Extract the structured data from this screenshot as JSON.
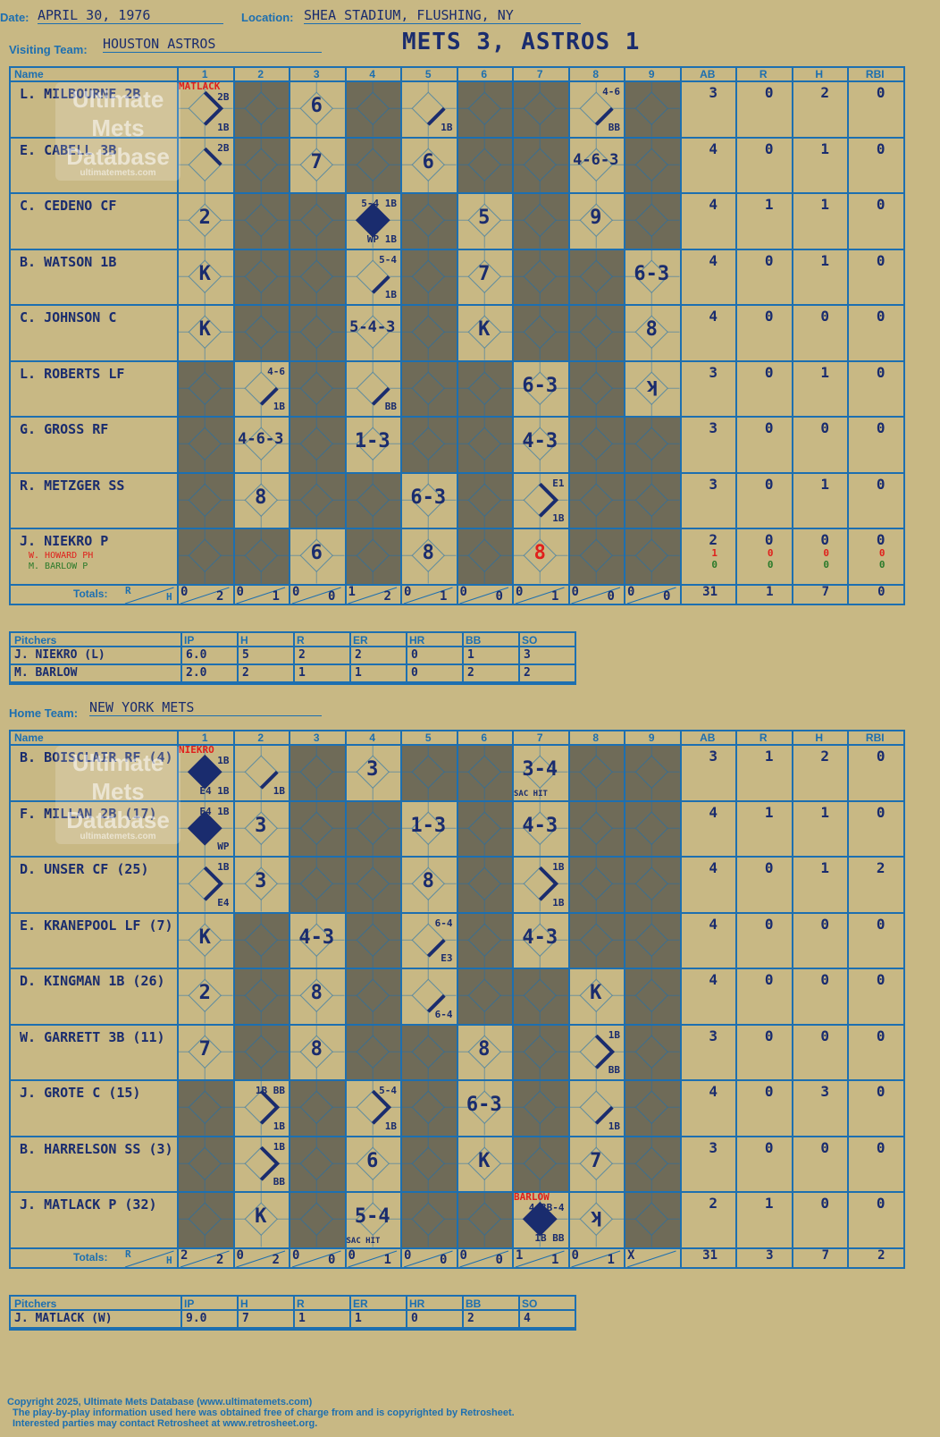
{
  "header": {
    "date_label": "Date:",
    "date": "APRIL 30, 1976",
    "location_label": "Location:",
    "location": "SHEA STADIUM, FLUSHING, NY",
    "title": "METS 3, ASTROS 1"
  },
  "colors": {
    "blue": "#1d6fb0",
    "ink": "#1a2c6e",
    "shade": "#6f6b58",
    "paper": "#c8b884",
    "red": "#e0201c",
    "green": "#2a7a2a"
  },
  "grid_headers": {
    "name": "Name",
    "innings": [
      "1",
      "2",
      "3",
      "4",
      "5",
      "6",
      "7",
      "8",
      "9"
    ],
    "stats": [
      "AB",
      "R",
      "H",
      "RBI"
    ],
    "totals": "Totals:",
    "r": "R",
    "h": "H"
  },
  "watermark": {
    "line1": "Ultimate",
    "line2": "Mets",
    "line3": "Database",
    "line4": "ultimatemets.com"
  },
  "visitors": {
    "label": "Visiting Team:",
    "team": "HOUSTON ASTROS",
    "batters": [
      {
        "name": "L. MILBOURNE 2B",
        "stats": [
          "3",
          "0",
          "2",
          "0"
        ],
        "cells": [
          {
            "s": 0,
            "play": "",
            "path": "1B-2B",
            "n": [
              "MATLACK",
              "2B",
              "1B"
            ]
          },
          {
            "s": 1
          },
          {
            "s": 0,
            "play": "6"
          },
          {
            "s": 1
          },
          {
            "s": 0,
            "play": "",
            "path": "1B",
            "n": [
              "",
              "",
              "1B"
            ]
          },
          {
            "s": 1
          },
          {
            "s": 1
          },
          {
            "s": 0,
            "play": "",
            "path": "BB",
            "n": [
              "",
              "4-6",
              "BB"
            ]
          },
          {
            "s": 1
          }
        ]
      },
      {
        "name": "E. CABELL 3B",
        "stats": [
          "4",
          "0",
          "1",
          "0"
        ],
        "cells": [
          {
            "s": 0,
            "play": "",
            "path": "2B",
            "n": [
              "",
              "2B",
              ""
            ]
          },
          {
            "s": 1
          },
          {
            "s": 0,
            "play": "7"
          },
          {
            "s": 1
          },
          {
            "s": 0,
            "play": "6"
          },
          {
            "s": 1
          },
          {
            "s": 1
          },
          {
            "s": 0,
            "play": "4-6-3"
          },
          {
            "s": 1
          }
        ]
      },
      {
        "name": "C. CEDENO CF",
        "stats": [
          "4",
          "1",
          "1",
          "0"
        ],
        "cells": [
          {
            "s": 0,
            "play": "2"
          },
          {
            "s": 1
          },
          {
            "s": 1
          },
          {
            "s": 0,
            "play": "",
            "path": "RUN",
            "n": [
              "",
              "5-4 1B",
              "WP  1B"
            ]
          },
          {
            "s": 1
          },
          {
            "s": 0,
            "play": "5"
          },
          {
            "s": 1
          },
          {
            "s": 0,
            "play": "9"
          },
          {
            "s": 1
          }
        ]
      },
      {
        "name": "B. WATSON 1B",
        "stats": [
          "4",
          "0",
          "1",
          "0"
        ],
        "cells": [
          {
            "s": 0,
            "play": "K"
          },
          {
            "s": 1
          },
          {
            "s": 1
          },
          {
            "s": 0,
            "play": "",
            "path": "1B",
            "n": [
              "",
              "5-4",
              "1B"
            ]
          },
          {
            "s": 1
          },
          {
            "s": 0,
            "play": "7"
          },
          {
            "s": 1
          },
          {
            "s": 1
          },
          {
            "s": 0,
            "play": "6-3"
          }
        ]
      },
      {
        "name": "C. JOHNSON C",
        "stats": [
          "4",
          "0",
          "0",
          "0"
        ],
        "cells": [
          {
            "s": 0,
            "play": "K"
          },
          {
            "s": 1
          },
          {
            "s": 1
          },
          {
            "s": 0,
            "play": "5-4-3"
          },
          {
            "s": 1
          },
          {
            "s": 0,
            "play": "K"
          },
          {
            "s": 1
          },
          {
            "s": 1
          },
          {
            "s": 0,
            "play": "8"
          }
        ]
      },
      {
        "name": "L. ROBERTS LF",
        "stats": [
          "3",
          "0",
          "1",
          "0"
        ],
        "cells": [
          {
            "s": 1
          },
          {
            "s": 0,
            "play": "",
            "path": "1B",
            "n": [
              "",
              "4-6",
              "1B"
            ]
          },
          {
            "s": 1
          },
          {
            "s": 0,
            "play": "",
            "path": "BB",
            "n": [
              "",
              "",
              "BB"
            ]
          },
          {
            "s": 1
          },
          {
            "s": 1
          },
          {
            "s": 0,
            "play": "6-3"
          },
          {
            "s": 1
          },
          {
            "s": 0,
            "play": "ʞ"
          }
        ]
      },
      {
        "name": "G. GROSS RF",
        "stats": [
          "3",
          "0",
          "0",
          "0"
        ],
        "cells": [
          {
            "s": 1
          },
          {
            "s": 0,
            "play": "4-6-3"
          },
          {
            "s": 1
          },
          {
            "s": 0,
            "play": "1-3"
          },
          {
            "s": 1
          },
          {
            "s": 1
          },
          {
            "s": 0,
            "play": "4-3"
          },
          {
            "s": 1
          },
          {
            "s": 1
          }
        ]
      },
      {
        "name": "R. METZGER SS",
        "stats": [
          "3",
          "0",
          "1",
          "0"
        ],
        "cells": [
          {
            "s": 1
          },
          {
            "s": 0,
            "play": "8"
          },
          {
            "s": 1
          },
          {
            "s": 1
          },
          {
            "s": 0,
            "play": "6-3"
          },
          {
            "s": 1
          },
          {
            "s": 0,
            "play": "",
            "path": "1B-2B",
            "n": [
              "",
              "E1",
              "1B"
            ]
          },
          {
            "s": 1
          },
          {
            "s": 1
          }
        ]
      },
      {
        "name": "J. NIEKRO P",
        "subs": [
          {
            "name": "W. HOWARD PH",
            "color": "#e0201c",
            "stats": [
              "1",
              "0",
              "0",
              "0"
            ]
          },
          {
            "name": "M. BARLOW P",
            "color": "#2a7a2a",
            "stats": [
              "0",
              "0",
              "0",
              "0"
            ]
          }
        ],
        "stats": [
          "2",
          "0",
          "0",
          "0"
        ],
        "cells": [
          {
            "s": 1
          },
          {
            "s": 1
          },
          {
            "s": 0,
            "play": "6"
          },
          {
            "s": 1
          },
          {
            "s": 0,
            "play": "8"
          },
          {
            "s": 1
          },
          {
            "s": 0,
            "play": "8",
            "red": true
          },
          {
            "s": 1
          },
          {
            "s": 1
          }
        ]
      }
    ],
    "totals": [
      [
        "0",
        "2"
      ],
      [
        "0",
        "1"
      ],
      [
        "0",
        "0"
      ],
      [
        "1",
        "2"
      ],
      [
        "0",
        "1"
      ],
      [
        "0",
        "0"
      ],
      [
        "0",
        "1"
      ],
      [
        "0",
        "0"
      ],
      [
        "0",
        "0"
      ]
    ],
    "stat_totals": [
      "31",
      "1",
      "7",
      "0"
    ],
    "pitchers_label": "Pitchers",
    "pitcher_headers": [
      "IP",
      "H",
      "R",
      "ER",
      "HR",
      "BB",
      "SO"
    ],
    "pitchers": [
      {
        "name": "J. NIEKRO (L)",
        "stats": [
          "6.0",
          "5",
          "2",
          "2",
          "0",
          "1",
          "3"
        ]
      },
      {
        "name": "M. BARLOW",
        "stats": [
          "2.0",
          "2",
          "1",
          "1",
          "0",
          "2",
          "2"
        ]
      }
    ]
  },
  "home": {
    "label": "Home Team:",
    "team": "NEW YORK METS",
    "batters": [
      {
        "name": "B. BOISCLAIR RF (4)",
        "stats": [
          "3",
          "1",
          "2",
          "0"
        ],
        "cells": [
          {
            "s": 0,
            "play": "",
            "path": "RUN",
            "n": [
              "NIEKRO",
              "1B",
              "E4  1B"
            ]
          },
          {
            "s": 0,
            "play": "",
            "path": "1B",
            "n": [
              "",
              "",
              "1B"
            ]
          },
          {
            "s": 1
          },
          {
            "s": 0,
            "play": "3"
          },
          {
            "s": 1
          },
          {
            "s": 1
          },
          {
            "s": 0,
            "play": "3-4",
            "n2": "SAC HIT"
          },
          {
            "s": 1
          },
          {
            "s": 1
          }
        ]
      },
      {
        "name": "F. MILLAN 2B (17)",
        "stats": [
          "4",
          "1",
          "1",
          "0"
        ],
        "cells": [
          {
            "s": 0,
            "play": "",
            "path": "RUN",
            "n": [
              "",
              "E4 1B",
              "WP"
            ]
          },
          {
            "s": 0,
            "play": "3"
          },
          {
            "s": 1
          },
          {
            "s": 1
          },
          {
            "s": 0,
            "play": "1-3"
          },
          {
            "s": 1
          },
          {
            "s": 0,
            "play": "4-3"
          },
          {
            "s": 1
          },
          {
            "s": 1
          }
        ]
      },
      {
        "name": "D. UNSER CF (25)",
        "stats": [
          "4",
          "0",
          "1",
          "2"
        ],
        "cells": [
          {
            "s": 0,
            "play": "",
            "path": "1B-2B",
            "n": [
              "",
              "1B",
              "E4"
            ]
          },
          {
            "s": 0,
            "play": "3"
          },
          {
            "s": 1
          },
          {
            "s": 1
          },
          {
            "s": 0,
            "play": "8"
          },
          {
            "s": 1
          },
          {
            "s": 0,
            "play": "",
            "path": "1B-2B",
            "n": [
              "",
              "1B",
              "1B"
            ]
          },
          {
            "s": 1
          },
          {
            "s": 1
          }
        ]
      },
      {
        "name": "E. KRANEPOOL LF (7)",
        "stats": [
          "4",
          "0",
          "0",
          "0"
        ],
        "cells": [
          {
            "s": 0,
            "play": "K"
          },
          {
            "s": 1
          },
          {
            "s": 0,
            "play": "4-3"
          },
          {
            "s": 1
          },
          {
            "s": 0,
            "play": "",
            "path": "1B",
            "n": [
              "",
              "6-4",
              "E3"
            ]
          },
          {
            "s": 1
          },
          {
            "s": 0,
            "play": "4-3"
          },
          {
            "s": 1
          },
          {
            "s": 1
          }
        ]
      },
      {
        "name": "D. KINGMAN 1B (26)",
        "stats": [
          "4",
          "0",
          "0",
          "0"
        ],
        "cells": [
          {
            "s": 0,
            "play": "2"
          },
          {
            "s": 1
          },
          {
            "s": 0,
            "play": "8"
          },
          {
            "s": 1
          },
          {
            "s": 0,
            "play": "",
            "path": "1B",
            "n": [
              "",
              "",
              "6-4"
            ]
          },
          {
            "s": 1
          },
          {
            "s": 1
          },
          {
            "s": 0,
            "play": "K"
          },
          {
            "s": 1
          }
        ]
      },
      {
        "name": "W. GARRETT 3B (11)",
        "stats": [
          "3",
          "0",
          "0",
          "0"
        ],
        "cells": [
          {
            "s": 0,
            "play": "7"
          },
          {
            "s": 1
          },
          {
            "s": 0,
            "play": "8"
          },
          {
            "s": 1
          },
          {
            "s": 1
          },
          {
            "s": 0,
            "play": "8"
          },
          {
            "s": 1
          },
          {
            "s": 0,
            "play": "",
            "path": "BB-2B",
            "n": [
              "",
              "1B",
              "BB"
            ]
          },
          {
            "s": 1
          }
        ]
      },
      {
        "name": "J. GROTE C (15)",
        "stats": [
          "4",
          "0",
          "3",
          "0"
        ],
        "cells": [
          {
            "s": 1
          },
          {
            "s": 0,
            "play": "",
            "path": "BB-2B",
            "n": [
              "",
              "1B  BB",
              "1B"
            ]
          },
          {
            "s": 1
          },
          {
            "s": 0,
            "play": "",
            "path": "1B-2B",
            "n": [
              "",
              "5-4",
              "1B"
            ]
          },
          {
            "s": 1
          },
          {
            "s": 0,
            "play": "6-3"
          },
          {
            "s": 1
          },
          {
            "s": 0,
            "play": "",
            "path": "1B",
            "n": [
              "",
              "",
              "1B"
            ]
          },
          {
            "s": 1
          }
        ]
      },
      {
        "name": "B. HARRELSON SS (3)",
        "stats": [
          "3",
          "0",
          "0",
          "0"
        ],
        "cells": [
          {
            "s": 1
          },
          {
            "s": 0,
            "play": "",
            "path": "BB-2B",
            "n": [
              "",
              "1B",
              "BB"
            ]
          },
          {
            "s": 1
          },
          {
            "s": 0,
            "play": "6"
          },
          {
            "s": 1
          },
          {
            "s": 0,
            "play": "K"
          },
          {
            "s": 1
          },
          {
            "s": 0,
            "play": "7"
          },
          {
            "s": 1
          }
        ]
      },
      {
        "name": "J. MATLACK P (32)",
        "stats": [
          "2",
          "1",
          "0",
          "0"
        ],
        "cells": [
          {
            "s": 1
          },
          {
            "s": 0,
            "play": "K"
          },
          {
            "s": 1
          },
          {
            "s": 0,
            "play": "5-4",
            "n2": "SAC HIT"
          },
          {
            "s": 1
          },
          {
            "s": 1
          },
          {
            "s": 0,
            "play": "",
            "path": "RUN",
            "n": [
              "BARLOW",
              "4-3B-4",
              "1B  BB"
            ]
          },
          {
            "s": 0,
            "play": "ʞ"
          },
          {
            "s": 1
          }
        ]
      }
    ],
    "totals": [
      [
        "2",
        "2"
      ],
      [
        "0",
        "2"
      ],
      [
        "0",
        "0"
      ],
      [
        "0",
        "1"
      ],
      [
        "0",
        "0"
      ],
      [
        "0",
        "0"
      ],
      [
        "1",
        "1"
      ],
      [
        "0",
        "1"
      ],
      [
        "X",
        ""
      ]
    ],
    "stat_totals": [
      "31",
      "3",
      "7",
      "2"
    ],
    "pitchers_label": "Pitchers",
    "pitcher_headers": [
      "IP",
      "H",
      "R",
      "ER",
      "HR",
      "BB",
      "SO"
    ],
    "pitchers": [
      {
        "name": "J. MATLACK (W)",
        "stats": [
          "9.0",
          "7",
          "1",
          "1",
          "0",
          "2",
          "4"
        ]
      }
    ]
  },
  "footer": {
    "line1": "Copyright 2025, Ultimate Mets Database (www.ultimatemets.com)",
    "line2": "The play-by-play information used here was obtained free of charge from and is copyrighted by Retrosheet.",
    "line3": "Interested parties may contact Retrosheet at www.retrosheet.org."
  }
}
